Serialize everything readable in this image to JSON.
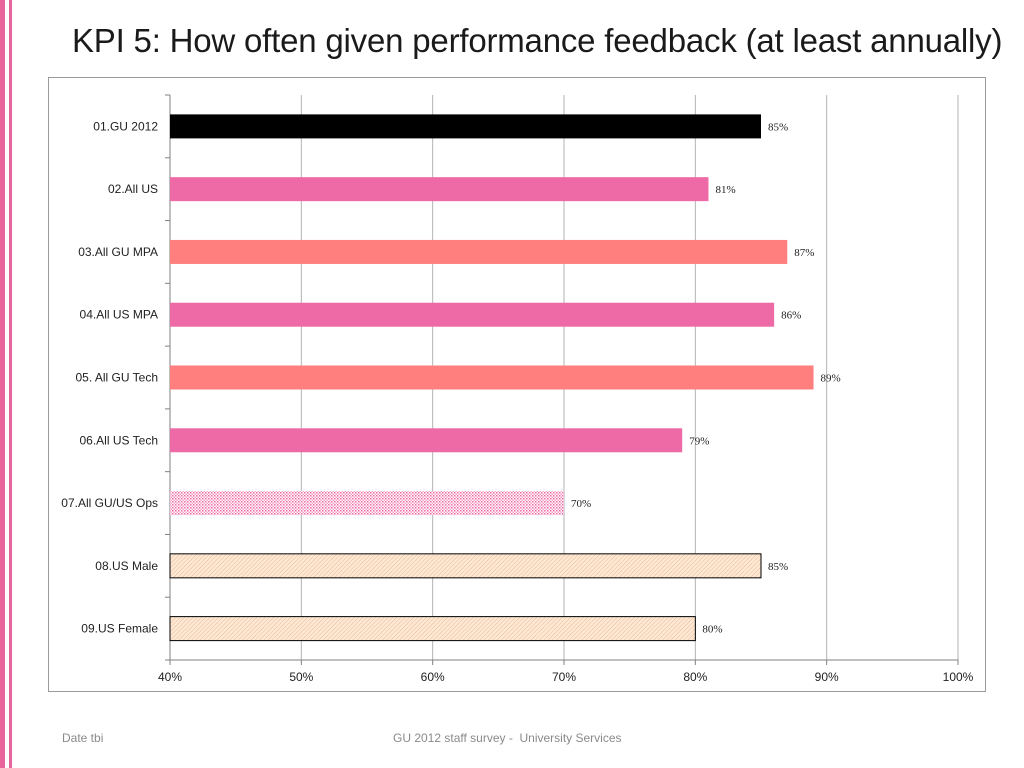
{
  "slide": {
    "title": "KPI 5: How often given performance feedback (at least annually)",
    "footer_left": "Date tbi",
    "footer_center": "GU 2012 staff survey -  University Services"
  },
  "colors": {
    "accent": "#e8649a",
    "black_bar": "#000000",
    "pink_bar": "#ee6aa7",
    "salmon_bar": "#ff7f7f",
    "peach_bar": "#fce4d0",
    "light_pink_bar": "#f6b3d3"
  },
  "chart_data": {
    "type": "bar",
    "orientation": "horizontal",
    "title": "",
    "xlabel": "",
    "ylabel": "",
    "xlim": [
      40,
      100
    ],
    "xticks": [
      "40%",
      "50%",
      "60%",
      "70%",
      "80%",
      "90%",
      "100%"
    ],
    "grid": true,
    "categories": [
      "01.GU 2012",
      "02.All US",
      "03.All GU MPA",
      "04.All US MPA",
      "05. All GU Tech",
      "06.All US Tech",
      "07.All GU/US Ops",
      "08.US Male",
      "09.US Female"
    ],
    "values": [
      85,
      81,
      87,
      86,
      89,
      79,
      70,
      85,
      80
    ],
    "labels": [
      "85%",
      "81%",
      "87%",
      "86%",
      "89%",
      "79%",
      "70%",
      "85%",
      "80%"
    ],
    "bar_colors": [
      "#000000",
      "#ee6aa7",
      "#ff7f7f",
      "#ee6aa7",
      "#ff7f7f",
      "#ee6aa7",
      "#f6b3d3",
      "#fce4d0",
      "#fce4d0"
    ],
    "bar_patterns": [
      "solid",
      "solid",
      "solid",
      "solid",
      "solid",
      "solid",
      "dots",
      "hatch",
      "hatch"
    ]
  }
}
